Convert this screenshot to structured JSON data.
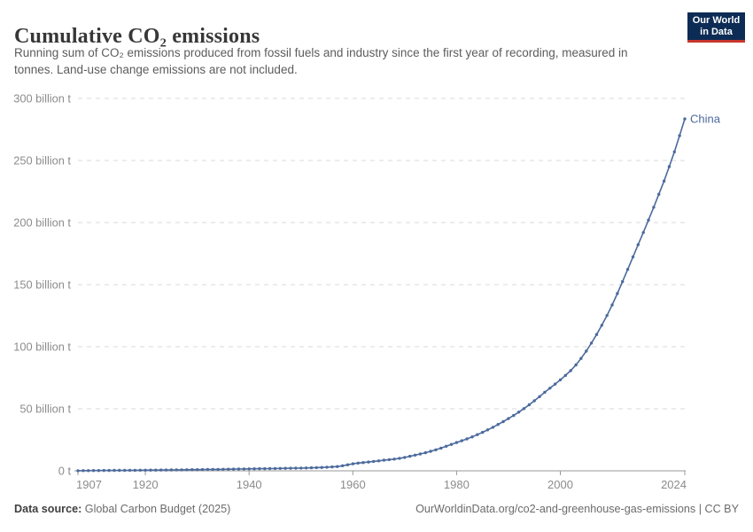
{
  "header": {
    "title": "Cumulative CO₂ emissions",
    "subtitle": "Running sum of CO₂ emissions produced from fossil fuels and industry since the first year of recording, measured in tonnes. Land-use change emissions are not included.",
    "logo": {
      "line1": "Our World",
      "line2": "in Data"
    }
  },
  "footer": {
    "source_label": "Data source:",
    "source_value": "Global Carbon Budget (2025)",
    "credit": "OurWorldinData.org/co2-and-greenhouse-gas-emissions | CC BY"
  },
  "colors": {
    "series": "#4c6a9c",
    "gridline": "#d9d9d9",
    "axis": "#999999",
    "tick_label": "#8c8c8c",
    "title_text": "#373737",
    "subtitle_text": "#5c5c5c",
    "logo_navy": "#0d2c55",
    "logo_red": "#c7352c"
  },
  "chart_data": {
    "type": "line",
    "title": "Cumulative CO₂ emissions",
    "unit": "billion tonnes",
    "grid": "horizontal dashed",
    "legend": "end-of-line label",
    "x_range": [
      1907,
      2024
    ],
    "y_range": [
      0,
      300
    ],
    "x_ticks": [
      1907,
      1920,
      1940,
      1960,
      1980,
      2000,
      2024
    ],
    "y_ticks": [
      0,
      50,
      100,
      150,
      200,
      250,
      300
    ],
    "y_tick_labels": [
      "0 t",
      "50 billion t",
      "100 billion t",
      "150 billion t",
      "200 billion t",
      "250 billion t",
      "300 billion t"
    ],
    "series": [
      {
        "name": "China",
        "years": [
          1907,
          1908,
          1909,
          1910,
          1911,
          1912,
          1913,
          1914,
          1915,
          1916,
          1917,
          1918,
          1919,
          1920,
          1921,
          1922,
          1923,
          1924,
          1925,
          1926,
          1927,
          1928,
          1929,
          1930,
          1931,
          1932,
          1933,
          1934,
          1935,
          1936,
          1937,
          1938,
          1939,
          1940,
          1941,
          1942,
          1943,
          1944,
          1945,
          1946,
          1947,
          1948,
          1949,
          1950,
          1951,
          1952,
          1953,
          1954,
          1955,
          1956,
          1957,
          1958,
          1959,
          1960,
          1961,
          1962,
          1963,
          1964,
          1965,
          1966,
          1967,
          1968,
          1969,
          1970,
          1971,
          1972,
          1973,
          1974,
          1975,
          1976,
          1977,
          1978,
          1979,
          1980,
          1981,
          1982,
          1983,
          1984,
          1985,
          1986,
          1987,
          1988,
          1989,
          1990,
          1991,
          1992,
          1993,
          1994,
          1995,
          1996,
          1997,
          1998,
          1999,
          2000,
          2001,
          2002,
          2003,
          2004,
          2005,
          2006,
          2007,
          2008,
          2009,
          2010,
          2011,
          2012,
          2013,
          2014,
          2015,
          2016,
          2017,
          2018,
          2019,
          2020,
          2021,
          2022,
          2023,
          2024
        ],
        "values": [
          0.1,
          0.13,
          0.16,
          0.2,
          0.23,
          0.27,
          0.3,
          0.33,
          0.36,
          0.39,
          0.42,
          0.45,
          0.48,
          0.51,
          0.55,
          0.59,
          0.63,
          0.67,
          0.72,
          0.76,
          0.81,
          0.86,
          0.91,
          0.96,
          1.01,
          1.06,
          1.11,
          1.16,
          1.22,
          1.28,
          1.35,
          1.41,
          1.48,
          1.55,
          1.62,
          1.68,
          1.74,
          1.8,
          1.86,
          1.92,
          1.98,
          2.05,
          2.12,
          2.2,
          2.31,
          2.44,
          2.58,
          2.74,
          2.93,
          3.16,
          3.46,
          4.09,
          4.87,
          5.66,
          6.21,
          6.65,
          7.09,
          7.54,
          8.03,
          8.55,
          8.99,
          9.46,
          10.05,
          10.82,
          11.69,
          12.63,
          13.59,
          14.56,
          15.73,
          16.93,
          18.29,
          19.79,
          21.29,
          22.77,
          24.21,
          25.73,
          27.37,
          29.16,
          31.02,
          32.98,
          35.1,
          37.34,
          39.63,
          42.05,
          44.58,
          47.27,
          50.15,
          53.2,
          56.41,
          59.8,
          63.26,
          66.58,
          69.88,
          73.28,
          76.84,
          80.71,
          85.25,
          90.54,
          96.44,
          102.9,
          109.87,
          117.25,
          125.12,
          133.59,
          142.89,
          152.42,
          162.32,
          172.28,
          182.16,
          192.01,
          201.97,
          212.28,
          222.77,
          233.44,
          245.0,
          257.0,
          270.0,
          283.5
        ]
      }
    ]
  }
}
